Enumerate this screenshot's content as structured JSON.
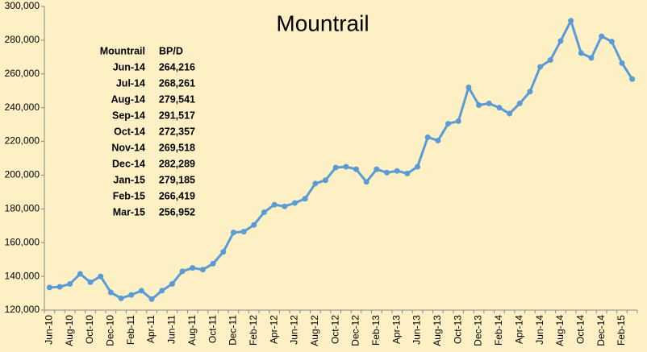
{
  "chart_data": {
    "type": "line",
    "title": "Mountrail",
    "categories": [
      "Jun-10",
      null,
      "Aug-10",
      null,
      "Oct-10",
      null,
      "Dec-10",
      null,
      "Feb-11",
      null,
      "Apr-11",
      null,
      "Jun-11",
      null,
      "Aug-11",
      null,
      "Oct-11",
      null,
      "Dec-11",
      null,
      "Feb-12",
      null,
      "Apr-12",
      null,
      "Jun-12",
      null,
      "Aug-12",
      null,
      "Oct-12",
      null,
      "Dec-12",
      null,
      "Feb-13",
      null,
      "Apr-13",
      null,
      "Jun-13",
      null,
      "Aug-13",
      null,
      "Oct-13",
      null,
      "Dec-13",
      null,
      "Feb-14",
      null,
      "Apr-14",
      null,
      "Jun-14",
      null,
      "Aug-14",
      null,
      "Oct-14",
      null,
      "Dec-14",
      null,
      "Feb-15",
      null
    ],
    "series": [
      {
        "name": "Mountrail",
        "color": "#5b9bd5",
        "values": [
          133400,
          133800,
          135500,
          141500,
          136500,
          140000,
          130500,
          127000,
          129000,
          131500,
          126500,
          131500,
          135500,
          143000,
          145000,
          144000,
          147500,
          154500,
          166000,
          166500,
          170500,
          178000,
          182500,
          181500,
          183500,
          186000,
          195000,
          197000,
          204500,
          205000,
          203500,
          196000,
          203500,
          201500,
          202500,
          201000,
          205000,
          222500,
          220500,
          230500,
          232000,
          252000,
          241500,
          242500,
          240000,
          236500,
          242500,
          249500,
          264216,
          268261,
          279541,
          291517,
          272357,
          269518,
          282289,
          279185,
          266419,
          256952
        ]
      }
    ],
    "ylim": [
      120000,
      300000
    ],
    "yticks": [
      {
        "value": 120000,
        "label": "120,000"
      },
      {
        "value": 140000,
        "label": "140,000"
      },
      {
        "value": 160000,
        "label": "160,000"
      },
      {
        "value": 180000,
        "label": "180,000"
      },
      {
        "value": 200000,
        "label": "200,000"
      },
      {
        "value": 220000,
        "label": "220,000"
      },
      {
        "value": 240000,
        "label": "240,000"
      },
      {
        "value": 260000,
        "label": "260,000"
      },
      {
        "value": 280000,
        "label": "280,000"
      },
      {
        "value": 300000,
        "label": "300,000"
      }
    ],
    "grid": false,
    "table": {
      "header": [
        "Mountrail",
        "BP/D"
      ],
      "rows": [
        [
          "Jun-14",
          "264,216"
        ],
        [
          "Jul-14",
          "268,261"
        ],
        [
          "Aug-14",
          "279,541"
        ],
        [
          "Sep-14",
          "291,517"
        ],
        [
          "Oct-14",
          "272,357"
        ],
        [
          "Nov-14",
          "269,518"
        ],
        [
          "Dec-14",
          "282,289"
        ],
        [
          "Jan-15",
          "279,185"
        ],
        [
          "Feb-15",
          "266,419"
        ],
        [
          "Mar-15",
          "256,952"
        ]
      ]
    }
  }
}
